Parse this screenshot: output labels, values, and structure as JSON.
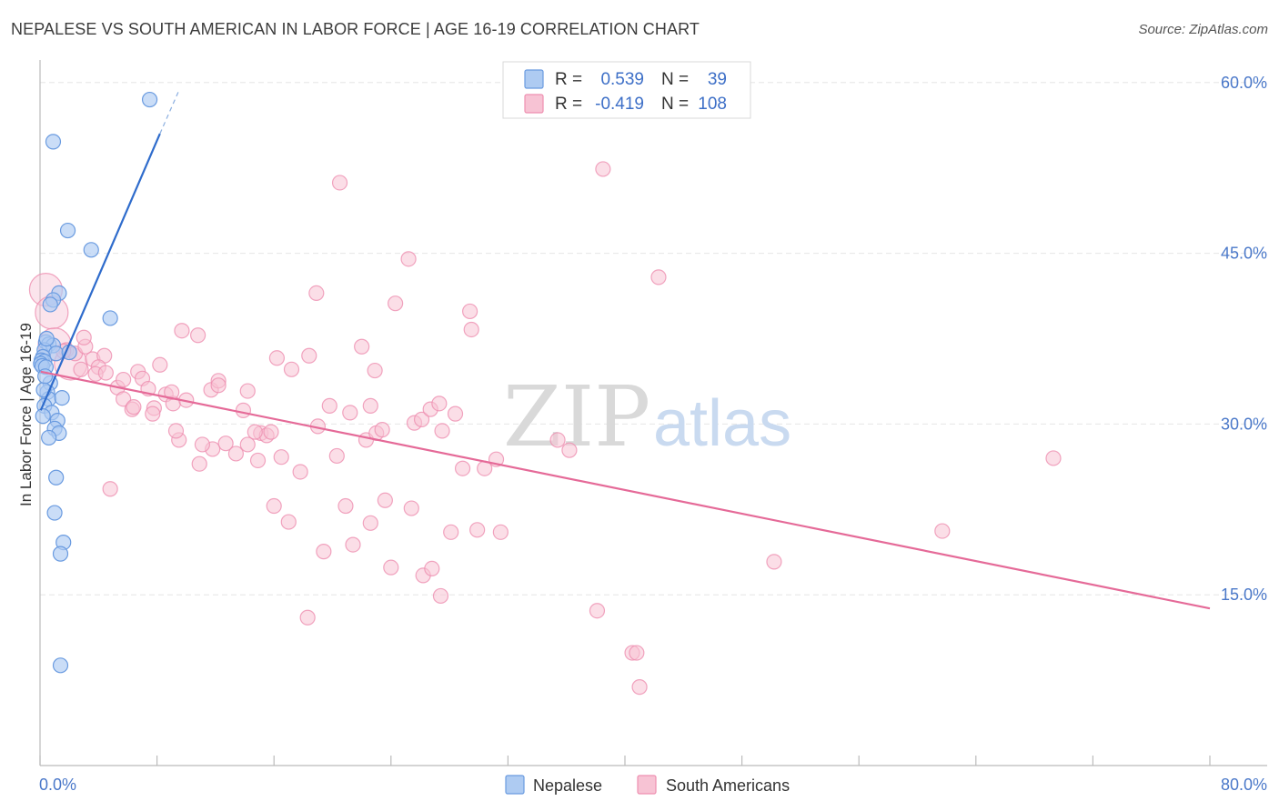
{
  "title": "NEPALESE VS SOUTH AMERICAN IN LABOR FORCE | AGE 16-19 CORRELATION CHART",
  "source": "Source: ZipAtlas.com",
  "watermark": {
    "zip": "ZIP",
    "atlas": "atlas"
  },
  "colors": {
    "nepalese": "#6a9be0",
    "nepalese_fill": "#aecbf2",
    "nepalese_line": "#2f6ccc",
    "south_americans": "#ee8fb0",
    "south_americans_fill": "#f7c3d4",
    "south_americans_line": "#e56a98",
    "tick": "#4a78c9",
    "grid": "#e6e6e6"
  },
  "legend": {
    "rows": [
      {
        "r_label": "R =",
        "r_value": "0.539",
        "n_label": "N =",
        "n_value": "39"
      },
      {
        "r_label": "R =",
        "r_value": "-0.419",
        "n_label": "N =",
        "n_value": "108"
      }
    ]
  },
  "chart_data": {
    "type": "scatter",
    "title": "NEPALESE VS SOUTH AMERICAN IN LABOR FORCE | AGE 16-19 CORRELATION CHART",
    "xlabel": "",
    "ylabel": "In Labor Force | Age 16-19",
    "xlim": [
      0,
      80
    ],
    "ylim": [
      0,
      61.5
    ],
    "x_tick_labels": [
      "0.0%",
      "80.0%"
    ],
    "y_ticks": [
      15,
      30,
      45,
      60
    ],
    "y_tick_labels": [
      "15.0%",
      "30.0%",
      "45.0%",
      "60.0%"
    ],
    "legend_position": "bottom-center",
    "series": [
      {
        "name": "Nepalese",
        "r": 0.539,
        "n": 39,
        "trend": {
          "x1": 0.05,
          "y1": 31.2,
          "x2": 8.2,
          "y2": 55.5,
          "dash_x2": 9.5,
          "dash_y2": 59.3
        },
        "points": [
          {
            "x": 7.5,
            "y": 58.5
          },
          {
            "x": 0.9,
            "y": 54.8
          },
          {
            "x": 1.9,
            "y": 47.0
          },
          {
            "x": 3.5,
            "y": 45.3
          },
          {
            "x": 1.3,
            "y": 41.5
          },
          {
            "x": 0.9,
            "y": 40.9
          },
          {
            "x": 0.7,
            "y": 40.5
          },
          {
            "x": 4.8,
            "y": 39.3
          },
          {
            "x": 0.4,
            "y": 37.2
          },
          {
            "x": 0.6,
            "y": 37.0
          },
          {
            "x": 0.9,
            "y": 36.9
          },
          {
            "x": 0.3,
            "y": 36.5
          },
          {
            "x": 1.1,
            "y": 36.2
          },
          {
            "x": 2.0,
            "y": 36.3
          },
          {
            "x": 0.2,
            "y": 35.9
          },
          {
            "x": 0.1,
            "y": 35.6
          },
          {
            "x": 0.3,
            "y": 35.5
          },
          {
            "x": 0.05,
            "y": 35.3
          },
          {
            "x": 0.15,
            "y": 35.1
          },
          {
            "x": 0.4,
            "y": 35.0
          },
          {
            "x": 0.7,
            "y": 33.6
          },
          {
            "x": 0.5,
            "y": 32.8
          },
          {
            "x": 0.6,
            "y": 32.2
          },
          {
            "x": 1.5,
            "y": 32.3
          },
          {
            "x": 0.3,
            "y": 31.6
          },
          {
            "x": 0.8,
            "y": 31.0
          },
          {
            "x": 0.2,
            "y": 30.7
          },
          {
            "x": 1.2,
            "y": 30.3
          },
          {
            "x": 1.0,
            "y": 29.6
          },
          {
            "x": 1.3,
            "y": 29.2
          },
          {
            "x": 0.6,
            "y": 28.8
          },
          {
            "x": 1.1,
            "y": 25.3
          },
          {
            "x": 1.0,
            "y": 22.2
          },
          {
            "x": 1.6,
            "y": 19.6
          },
          {
            "x": 1.4,
            "y": 18.6
          },
          {
            "x": 1.4,
            "y": 8.8
          },
          {
            "x": 0.25,
            "y": 33.0
          },
          {
            "x": 0.35,
            "y": 34.2
          },
          {
            "x": 0.45,
            "y": 37.5
          }
        ]
      },
      {
        "name": "South Americans",
        "r": -0.419,
        "n": 108,
        "trend": {
          "x1": 0.05,
          "y1": 34.6,
          "x2": 80,
          "y2": 13.8
        },
        "points": [
          {
            "x": 0.4,
            "y": 41.8,
            "big": true
          },
          {
            "x": 0.8,
            "y": 39.8,
            "big": true
          },
          {
            "x": 1.0,
            "y": 37.0,
            "big": true
          },
          {
            "x": 2.1,
            "y": 35.3,
            "big": true
          },
          {
            "x": 1.8,
            "y": 36.5
          },
          {
            "x": 2.4,
            "y": 36.2
          },
          {
            "x": 3.1,
            "y": 36.8
          },
          {
            "x": 3.0,
            "y": 37.6
          },
          {
            "x": 1.6,
            "y": 36.4
          },
          {
            "x": 2.8,
            "y": 34.8
          },
          {
            "x": 3.6,
            "y": 35.7
          },
          {
            "x": 4.4,
            "y": 36.0
          },
          {
            "x": 4.0,
            "y": 35.0
          },
          {
            "x": 3.8,
            "y": 34.4
          },
          {
            "x": 4.5,
            "y": 34.5
          },
          {
            "x": 5.3,
            "y": 33.2
          },
          {
            "x": 5.7,
            "y": 33.9
          },
          {
            "x": 6.7,
            "y": 34.6
          },
          {
            "x": 7.0,
            "y": 34.0
          },
          {
            "x": 8.2,
            "y": 35.2
          },
          {
            "x": 7.4,
            "y": 33.1
          },
          {
            "x": 8.6,
            "y": 32.6
          },
          {
            "x": 5.7,
            "y": 32.2
          },
          {
            "x": 6.3,
            "y": 31.3
          },
          {
            "x": 6.4,
            "y": 31.5
          },
          {
            "x": 7.8,
            "y": 31.4
          },
          {
            "x": 7.7,
            "y": 30.9
          },
          {
            "x": 9.1,
            "y": 31.8
          },
          {
            "x": 9.7,
            "y": 38.2
          },
          {
            "x": 10.8,
            "y": 37.8
          },
          {
            "x": 9.0,
            "y": 32.8
          },
          {
            "x": 10.0,
            "y": 32.1
          },
          {
            "x": 11.7,
            "y": 33.0
          },
          {
            "x": 12.2,
            "y": 33.8
          },
          {
            "x": 12.2,
            "y": 33.4
          },
          {
            "x": 14.2,
            "y": 32.9
          },
          {
            "x": 13.9,
            "y": 31.2
          },
          {
            "x": 14.2,
            "y": 28.2
          },
          {
            "x": 12.7,
            "y": 28.3
          },
          {
            "x": 11.8,
            "y": 27.8
          },
          {
            "x": 13.4,
            "y": 27.4
          },
          {
            "x": 11.1,
            "y": 28.2
          },
          {
            "x": 9.5,
            "y": 28.6
          },
          {
            "x": 9.3,
            "y": 29.4
          },
          {
            "x": 10.9,
            "y": 26.5
          },
          {
            "x": 15.1,
            "y": 29.2
          },
          {
            "x": 15.5,
            "y": 29.0
          },
          {
            "x": 14.7,
            "y": 29.3
          },
          {
            "x": 14.9,
            "y": 26.8
          },
          {
            "x": 16.5,
            "y": 27.1
          },
          {
            "x": 17.8,
            "y": 25.8
          },
          {
            "x": 16.2,
            "y": 35.8
          },
          {
            "x": 17.2,
            "y": 34.8
          },
          {
            "x": 18.4,
            "y": 36.0
          },
          {
            "x": 18.9,
            "y": 41.5
          },
          {
            "x": 19.8,
            "y": 31.6
          },
          {
            "x": 19.0,
            "y": 29.8
          },
          {
            "x": 20.3,
            "y": 27.2
          },
          {
            "x": 21.2,
            "y": 31.0
          },
          {
            "x": 20.9,
            "y": 22.8
          },
          {
            "x": 22.0,
            "y": 36.8
          },
          {
            "x": 22.9,
            "y": 34.7
          },
          {
            "x": 22.6,
            "y": 31.6
          },
          {
            "x": 22.3,
            "y": 28.6
          },
          {
            "x": 23.0,
            "y": 29.2
          },
          {
            "x": 23.4,
            "y": 29.5
          },
          {
            "x": 22.6,
            "y": 21.3
          },
          {
            "x": 21.4,
            "y": 19.4
          },
          {
            "x": 19.4,
            "y": 18.8
          },
          {
            "x": 16.0,
            "y": 22.8
          },
          {
            "x": 17.0,
            "y": 21.4
          },
          {
            "x": 20.5,
            "y": 51.2
          },
          {
            "x": 24.3,
            "y": 40.6
          },
          {
            "x": 24.0,
            "y": 17.4
          },
          {
            "x": 25.2,
            "y": 44.5
          },
          {
            "x": 25.6,
            "y": 30.1
          },
          {
            "x": 26.1,
            "y": 30.4
          },
          {
            "x": 25.4,
            "y": 22.6
          },
          {
            "x": 23.6,
            "y": 23.3
          },
          {
            "x": 26.7,
            "y": 31.3
          },
          {
            "x": 27.3,
            "y": 31.8
          },
          {
            "x": 27.5,
            "y": 29.4
          },
          {
            "x": 28.4,
            "y": 30.9
          },
          {
            "x": 28.9,
            "y": 26.1
          },
          {
            "x": 29.4,
            "y": 39.9
          },
          {
            "x": 29.5,
            "y": 38.3
          },
          {
            "x": 30.4,
            "y": 26.1
          },
          {
            "x": 31.2,
            "y": 26.9
          },
          {
            "x": 31.5,
            "y": 20.5
          },
          {
            "x": 29.9,
            "y": 20.7
          },
          {
            "x": 28.1,
            "y": 20.5
          },
          {
            "x": 26.2,
            "y": 16.7
          },
          {
            "x": 26.8,
            "y": 17.3
          },
          {
            "x": 27.4,
            "y": 14.9
          },
          {
            "x": 35.4,
            "y": 28.6
          },
          {
            "x": 36.2,
            "y": 27.7
          },
          {
            "x": 38.5,
            "y": 52.4
          },
          {
            "x": 38.1,
            "y": 13.6
          },
          {
            "x": 40.5,
            "y": 9.9
          },
          {
            "x": 40.8,
            "y": 9.9
          },
          {
            "x": 41.0,
            "y": 6.9
          },
          {
            "x": 42.3,
            "y": 42.9
          },
          {
            "x": 50.2,
            "y": 17.9
          },
          {
            "x": 61.7,
            "y": 20.6
          },
          {
            "x": 69.3,
            "y": 27.0
          },
          {
            "x": 4.8,
            "y": 24.3
          },
          {
            "x": 18.3,
            "y": 13.0
          },
          {
            "x": 15.8,
            "y": 29.3
          }
        ]
      }
    ]
  },
  "bottom_legend": {
    "nepalese": "Nepalese",
    "south_americans": "South Americans"
  }
}
